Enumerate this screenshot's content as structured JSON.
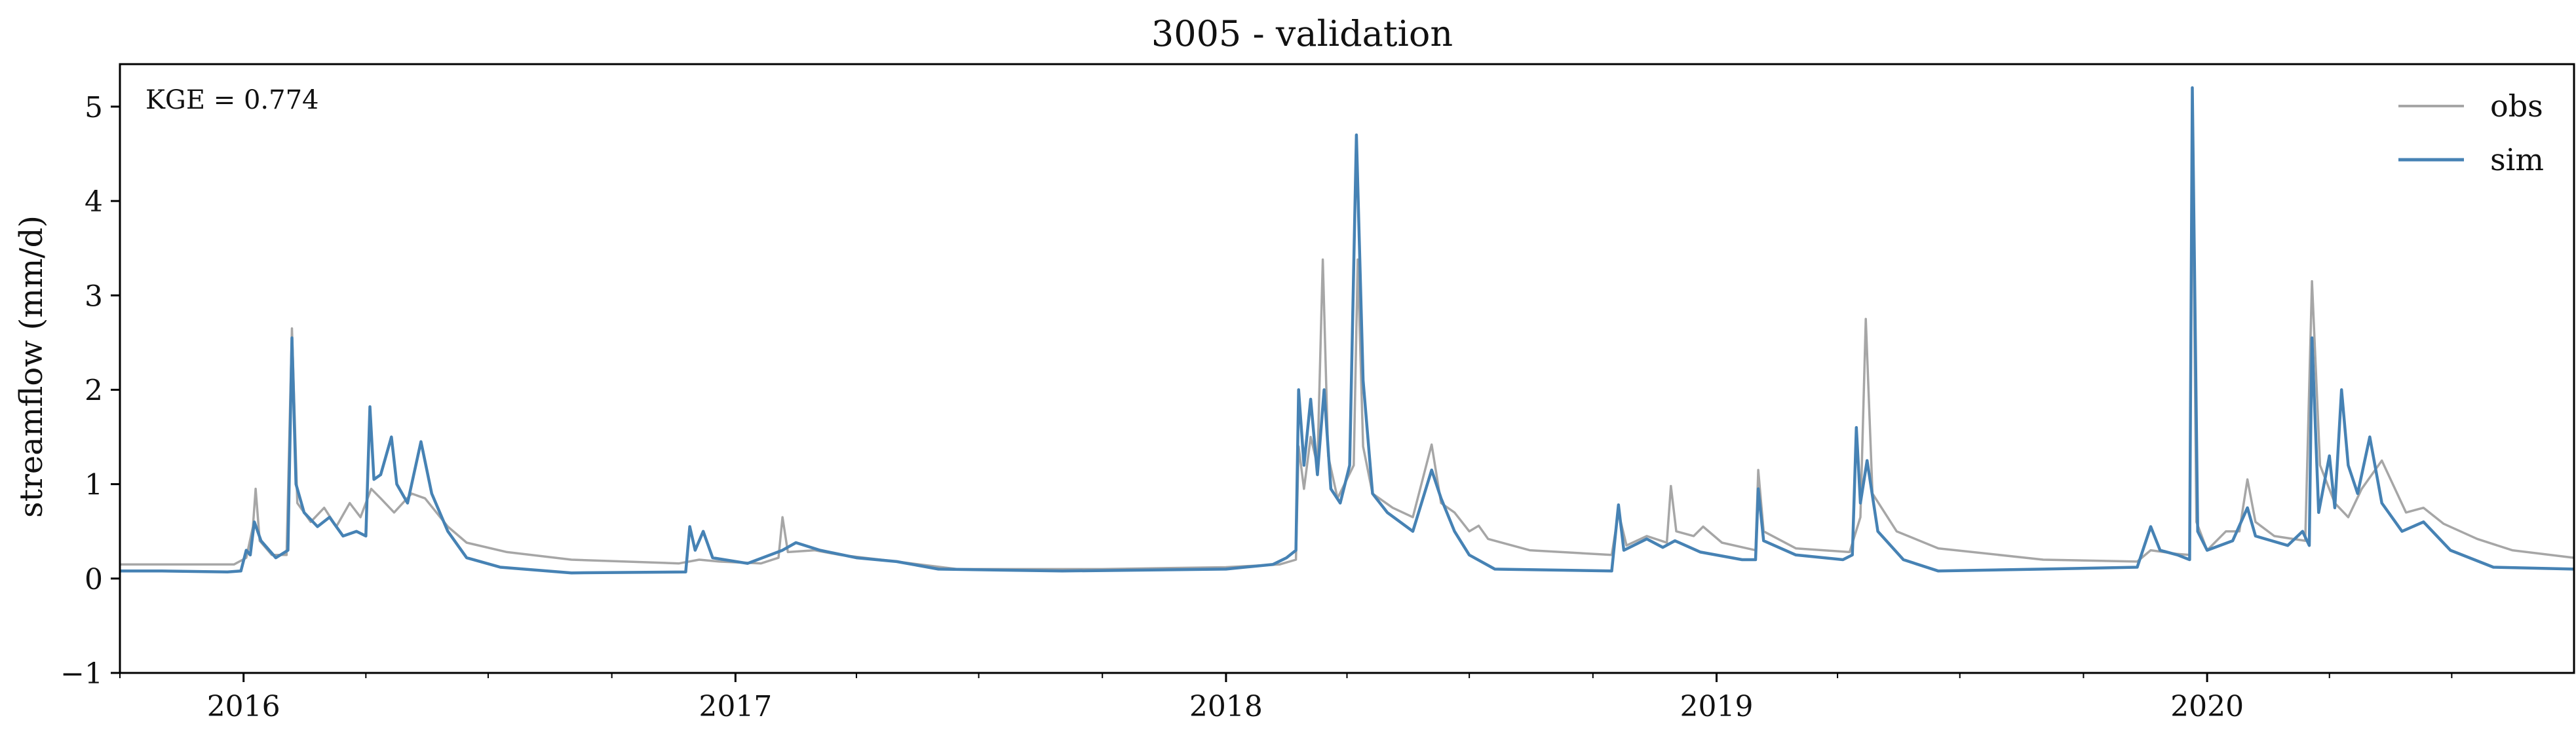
{
  "chart_data": {
    "type": "line",
    "title": "3005 - validation",
    "xlabel": "",
    "ylabel": "streamflow (mm/d)",
    "xlim": [
      "2015-10-01",
      "2020-09-30"
    ],
    "ylim": [
      -1,
      5.45
    ],
    "y_ticks": [
      -1,
      0,
      1,
      2,
      3,
      4,
      5
    ],
    "y_tick_labels": [
      "−1",
      "0",
      "1",
      "2",
      "3",
      "4",
      "5"
    ],
    "x_ticks": [
      "2016-01-01",
      "2017-01-01",
      "2018-01-01",
      "2019-01-01",
      "2020-01-01"
    ],
    "x_tick_labels": [
      "2016",
      "2017",
      "2018",
      "2019",
      "2020"
    ],
    "annotation": "KGE = 0.774",
    "grid": false,
    "legend_position": "top-right",
    "series": [
      {
        "name": "obs",
        "color": "#a6a6a6",
        "points": [
          [
            "2015-10-01",
            0.15
          ],
          [
            "2015-12-25",
            0.15
          ],
          [
            "2016-01-03",
            0.22
          ],
          [
            "2016-01-08",
            0.55
          ],
          [
            "2016-01-10",
            0.95
          ],
          [
            "2016-01-13",
            0.4
          ],
          [
            "2016-01-22",
            0.25
          ],
          [
            "2016-02-02",
            0.25
          ],
          [
            "2016-02-06",
            2.65
          ],
          [
            "2016-02-10",
            0.8
          ],
          [
            "2016-02-20",
            0.6
          ],
          [
            "2016-03-01",
            0.75
          ],
          [
            "2016-03-10",
            0.55
          ],
          [
            "2016-03-20",
            0.8
          ],
          [
            "2016-03-28",
            0.65
          ],
          [
            "2016-04-05",
            0.95
          ],
          [
            "2016-04-12",
            0.85
          ],
          [
            "2016-04-22",
            0.7
          ],
          [
            "2016-05-05",
            0.9
          ],
          [
            "2016-05-15",
            0.85
          ],
          [
            "2016-06-01",
            0.55
          ],
          [
            "2016-06-15",
            0.38
          ],
          [
            "2016-07-15",
            0.28
          ],
          [
            "2016-09-01",
            0.2
          ],
          [
            "2016-11-20",
            0.16
          ],
          [
            "2016-12-05",
            0.2
          ],
          [
            "2016-12-20",
            0.18
          ],
          [
            "2017-01-20",
            0.16
          ],
          [
            "2017-02-02",
            0.22
          ],
          [
            "2017-02-05",
            0.65
          ],
          [
            "2017-02-09",
            0.28
          ],
          [
            "2017-03-01",
            0.3
          ],
          [
            "2017-03-20",
            0.25
          ],
          [
            "2017-05-01",
            0.18
          ],
          [
            "2017-06-15",
            0.1
          ],
          [
            "2017-10-01",
            0.1
          ],
          [
            "2018-01-01",
            0.12
          ],
          [
            "2018-02-10",
            0.15
          ],
          [
            "2018-02-22",
            0.2
          ],
          [
            "2018-02-24",
            1.4
          ],
          [
            "2018-02-28",
            0.95
          ],
          [
            "2018-03-05",
            1.5
          ],
          [
            "2018-03-10",
            1.2
          ],
          [
            "2018-03-14",
            3.38
          ],
          [
            "2018-03-18",
            1.3
          ],
          [
            "2018-03-25",
            0.85
          ],
          [
            "2018-04-06",
            1.2
          ],
          [
            "2018-04-09",
            3.38
          ],
          [
            "2018-04-13",
            1.4
          ],
          [
            "2018-04-20",
            0.9
          ],
          [
            "2018-05-05",
            0.75
          ],
          [
            "2018-05-20",
            0.65
          ],
          [
            "2018-06-03",
            1.42
          ],
          [
            "2018-06-10",
            0.8
          ],
          [
            "2018-06-20",
            0.7
          ],
          [
            "2018-07-01",
            0.5
          ],
          [
            "2018-07-08",
            0.56
          ],
          [
            "2018-07-15",
            0.42
          ],
          [
            "2018-08-15",
            0.3
          ],
          [
            "2018-10-15",
            0.25
          ],
          [
            "2018-10-20",
            0.7
          ],
          [
            "2018-10-26",
            0.35
          ],
          [
            "2018-11-10",
            0.45
          ],
          [
            "2018-11-25",
            0.38
          ],
          [
            "2018-11-28",
            0.98
          ],
          [
            "2018-12-02",
            0.5
          ],
          [
            "2018-12-15",
            0.45
          ],
          [
            "2018-12-22",
            0.55
          ],
          [
            "2019-01-05",
            0.38
          ],
          [
            "2019-01-30",
            0.3
          ],
          [
            "2019-02-01",
            1.15
          ],
          [
            "2019-02-05",
            0.5
          ],
          [
            "2019-03-01",
            0.32
          ],
          [
            "2019-04-10",
            0.28
          ],
          [
            "2019-04-18",
            0.65
          ],
          [
            "2019-04-22",
            2.75
          ],
          [
            "2019-04-27",
            0.9
          ],
          [
            "2019-05-15",
            0.5
          ],
          [
            "2019-06-15",
            0.32
          ],
          [
            "2019-09-01",
            0.2
          ],
          [
            "2019-11-10",
            0.18
          ],
          [
            "2019-11-20",
            0.3
          ],
          [
            "2019-12-10",
            0.26
          ],
          [
            "2019-12-19",
            0.25
          ],
          [
            "2019-12-21",
            4.9
          ],
          [
            "2019-12-24",
            0.6
          ],
          [
            "2020-01-01",
            0.3
          ],
          [
            "2020-01-15",
            0.5
          ],
          [
            "2020-01-25",
            0.5
          ],
          [
            "2020-01-31",
            1.05
          ],
          [
            "2020-02-06",
            0.6
          ],
          [
            "2020-02-20",
            0.45
          ],
          [
            "2020-03-14",
            0.4
          ],
          [
            "2020-03-19",
            3.15
          ],
          [
            "2020-03-25",
            1.2
          ],
          [
            "2020-04-05",
            0.8
          ],
          [
            "2020-04-15",
            0.65
          ],
          [
            "2020-04-25",
            0.95
          ],
          [
            "2020-05-10",
            1.25
          ],
          [
            "2020-05-28",
            0.7
          ],
          [
            "2020-06-10",
            0.75
          ],
          [
            "2020-06-25",
            0.58
          ],
          [
            "2020-07-20",
            0.42
          ],
          [
            "2020-08-15",
            0.3
          ],
          [
            "2020-09-30",
            0.22
          ]
        ]
      },
      {
        "name": "sim",
        "color": "#4682b4",
        "points": [
          [
            "2015-10-01",
            0.08
          ],
          [
            "2015-11-01",
            0.08
          ],
          [
            "2015-12-20",
            0.07
          ],
          [
            "2015-12-30",
            0.08
          ],
          [
            "2016-01-03",
            0.3
          ],
          [
            "2016-01-06",
            0.25
          ],
          [
            "2016-01-09",
            0.6
          ],
          [
            "2016-01-14",
            0.4
          ],
          [
            "2016-01-25",
            0.22
          ],
          [
            "2016-02-03",
            0.3
          ],
          [
            "2016-02-06",
            2.55
          ],
          [
            "2016-02-09",
            1.0
          ],
          [
            "2016-02-15",
            0.7
          ],
          [
            "2016-02-25",
            0.55
          ],
          [
            "2016-03-05",
            0.65
          ],
          [
            "2016-03-15",
            0.45
          ],
          [
            "2016-03-25",
            0.5
          ],
          [
            "2016-04-01",
            0.45
          ],
          [
            "2016-04-04",
            1.82
          ],
          [
            "2016-04-07",
            1.05
          ],
          [
            "2016-04-12",
            1.1
          ],
          [
            "2016-04-20",
            1.5
          ],
          [
            "2016-04-24",
            1.0
          ],
          [
            "2016-05-02",
            0.8
          ],
          [
            "2016-05-12",
            1.45
          ],
          [
            "2016-05-20",
            0.9
          ],
          [
            "2016-06-01",
            0.5
          ],
          [
            "2016-06-15",
            0.22
          ],
          [
            "2016-07-10",
            0.12
          ],
          [
            "2016-09-01",
            0.06
          ],
          [
            "2016-11-25",
            0.07
          ],
          [
            "2016-11-28",
            0.55
          ],
          [
            "2016-12-02",
            0.3
          ],
          [
            "2016-12-08",
            0.5
          ],
          [
            "2016-12-15",
            0.22
          ],
          [
            "2017-01-10",
            0.16
          ],
          [
            "2017-02-05",
            0.3
          ],
          [
            "2017-02-15",
            0.38
          ],
          [
            "2017-03-05",
            0.3
          ],
          [
            "2017-04-01",
            0.22
          ],
          [
            "2017-05-01",
            0.18
          ],
          [
            "2017-06-01",
            0.1
          ],
          [
            "2017-09-01",
            0.08
          ],
          [
            "2018-01-01",
            0.1
          ],
          [
            "2018-02-05",
            0.15
          ],
          [
            "2018-02-15",
            0.22
          ],
          [
            "2018-02-22",
            0.3
          ],
          [
            "2018-02-24",
            2.0
          ],
          [
            "2018-02-28",
            1.2
          ],
          [
            "2018-03-05",
            1.9
          ],
          [
            "2018-03-10",
            1.1
          ],
          [
            "2018-03-15",
            2.0
          ],
          [
            "2018-03-20",
            0.95
          ],
          [
            "2018-03-27",
            0.8
          ],
          [
            "2018-04-03",
            1.2
          ],
          [
            "2018-04-08",
            4.7
          ],
          [
            "2018-04-13",
            2.1
          ],
          [
            "2018-04-20",
            0.9
          ],
          [
            "2018-05-01",
            0.7
          ],
          [
            "2018-05-20",
            0.5
          ],
          [
            "2018-06-03",
            1.15
          ],
          [
            "2018-06-10",
            0.85
          ],
          [
            "2018-06-20",
            0.5
          ],
          [
            "2018-07-01",
            0.25
          ],
          [
            "2018-07-20",
            0.1
          ],
          [
            "2018-10-15",
            0.08
          ],
          [
            "2018-10-20",
            0.78
          ],
          [
            "2018-10-24",
            0.3
          ],
          [
            "2018-11-10",
            0.42
          ],
          [
            "2018-11-22",
            0.33
          ],
          [
            "2018-12-01",
            0.4
          ],
          [
            "2018-12-20",
            0.28
          ],
          [
            "2019-01-20",
            0.2
          ],
          [
            "2019-01-30",
            0.2
          ],
          [
            "2019-02-01",
            0.95
          ],
          [
            "2019-02-05",
            0.4
          ],
          [
            "2019-03-01",
            0.25
          ],
          [
            "2019-04-05",
            0.2
          ],
          [
            "2019-04-12",
            0.25
          ],
          [
            "2019-04-15",
            1.6
          ],
          [
            "2019-04-18",
            0.8
          ],
          [
            "2019-04-23",
            1.25
          ],
          [
            "2019-05-01",
            0.5
          ],
          [
            "2019-05-20",
            0.2
          ],
          [
            "2019-06-15",
            0.08
          ],
          [
            "2019-09-01",
            0.1
          ],
          [
            "2019-11-10",
            0.12
          ],
          [
            "2019-11-20",
            0.55
          ],
          [
            "2019-11-27",
            0.3
          ],
          [
            "2019-12-10",
            0.25
          ],
          [
            "2019-12-19",
            0.2
          ],
          [
            "2019-12-21",
            5.2
          ],
          [
            "2019-12-25",
            0.5
          ],
          [
            "2020-01-01",
            0.3
          ],
          [
            "2020-01-20",
            0.4
          ],
          [
            "2020-01-31",
            0.75
          ],
          [
            "2020-02-06",
            0.45
          ],
          [
            "2020-03-01",
            0.35
          ],
          [
            "2020-03-12",
            0.5
          ],
          [
            "2020-03-17",
            0.35
          ],
          [
            "2020-03-19",
            2.55
          ],
          [
            "2020-03-24",
            0.7
          ],
          [
            "2020-04-01",
            1.3
          ],
          [
            "2020-04-05",
            0.75
          ],
          [
            "2020-04-10",
            2.0
          ],
          [
            "2020-04-15",
            1.2
          ],
          [
            "2020-04-22",
            0.9
          ],
          [
            "2020-05-01",
            1.5
          ],
          [
            "2020-05-10",
            0.8
          ],
          [
            "2020-05-25",
            0.5
          ],
          [
            "2020-06-10",
            0.6
          ],
          [
            "2020-06-30",
            0.3
          ],
          [
            "2020-08-01",
            0.12
          ],
          [
            "2020-09-30",
            0.1
          ]
        ]
      }
    ]
  }
}
